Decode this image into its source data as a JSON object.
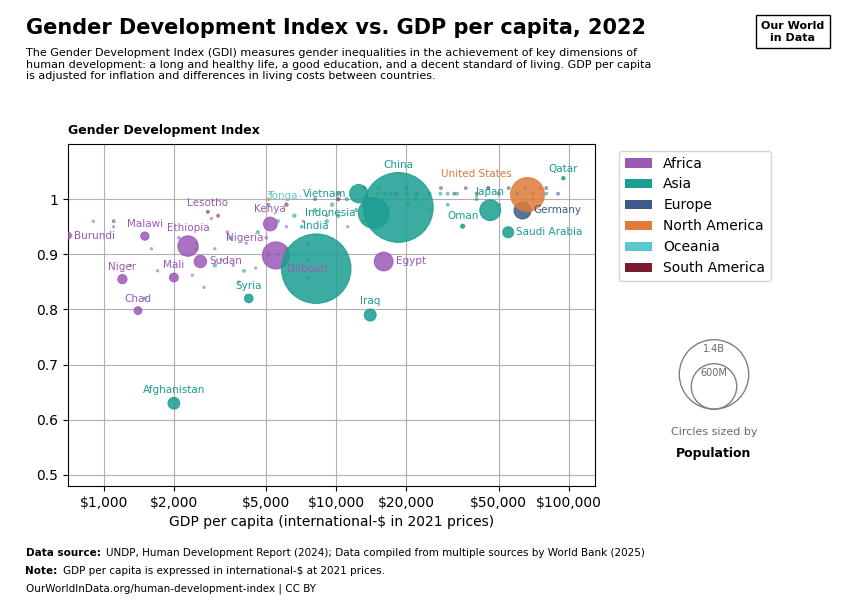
{
  "chart_data": {
    "type": "scatter",
    "title": "Gender Development Index vs. GDP per capita, 2022",
    "subtitle": "The Gender Development Index (GDI) measures gender inequalities in the achievement of key dimensions of\nhuman development: a long and healthy life, a good education, and a decent standard of living. GDP per capita\nis adjusted for inflation and differences in living costs between countries.",
    "xlabel": "GDP per capita (international-$ in 2021 prices)",
    "ylabel": "Gender Development Index",
    "log": "x",
    "xlim": [
      700,
      130000
    ],
    "ylim": [
      0.48,
      1.1
    ],
    "xticks": [
      {
        "value": 1000,
        "label": "$1,000"
      },
      {
        "value": 2000,
        "label": "$2,000"
      },
      {
        "value": 5000,
        "label": "$5,000"
      },
      {
        "value": 10000,
        "label": "$10,000"
      },
      {
        "value": 20000,
        "label": "$20,000"
      },
      {
        "value": 50000,
        "label": "$50,000"
      },
      {
        "value": 100000,
        "label": "$100,000"
      }
    ],
    "yticks": [
      0.5,
      0.6,
      0.7,
      0.8,
      0.9,
      {
        "value": 1.0,
        "label": "1"
      }
    ],
    "grid": true,
    "legend": "upper left",
    "series": [
      {
        "name": "Africa",
        "color": "#9B59B6",
        "x": [
          900,
          1100,
          1300,
          1600,
          1700,
          2100,
          2200,
          2400,
          2500,
          2700,
          2900,
          3000,
          3200,
          3400,
          3600,
          3800,
          4100,
          4500,
          5000,
          5600,
          6100,
          7200,
          7600,
          9100,
          11200,
          13200,
          700,
          1500,
          1200,
          2000,
          1400,
          2300,
          2600,
          2800,
          5200,
          5500,
          7500,
          16000
        ],
        "y": [
          0.96,
          0.95,
          0.88,
          0.91,
          0.87,
          0.93,
          0.9,
          0.862,
          0.92,
          0.84,
          0.965,
          0.91,
          0.89,
          0.94,
          0.88,
          0.85,
          0.92,
          0.875,
          0.93,
          0.9,
          0.95,
          0.96,
          0.89,
          0.97,
          0.95,
          0.96,
          0.934,
          0.933,
          0.855,
          0.858,
          0.798,
          0.915,
          0.887,
          0.977,
          0.955,
          0.898,
          0.858,
          0.887
        ],
        "size": [
          2,
          2,
          2,
          2,
          2,
          3,
          2,
          2,
          2,
          2,
          2,
          2,
          2,
          3,
          2,
          2,
          2,
          2,
          3,
          2,
          2,
          2,
          2,
          2,
          2,
          2,
          12.5,
          19.5,
          24.0,
          22.0,
          17.0,
          120.0,
          44.0,
          2.2,
          54.0,
          213.0,
          1.0,
          102.0
        ],
        "labels": [
          null,
          null,
          null,
          null,
          null,
          null,
          null,
          null,
          null,
          null,
          null,
          null,
          null,
          null,
          null,
          null,
          null,
          null,
          null,
          null,
          null,
          null,
          null,
          null,
          null,
          null,
          "Burundi",
          "Malawi",
          "Niger",
          "Mali",
          "Chad",
          "Ethiopia",
          "Sudan",
          "Lesotho",
          "Kenya",
          "Nigeria",
          "Djibouti",
          "Egypt"
        ]
      },
      {
        "name": "Asia",
        "color": "#1A9E8F",
        "x": [
          1500,
          2500,
          3000,
          3500,
          4000,
          4600,
          5100,
          5600,
          6100,
          6600,
          7100,
          7600,
          8100,
          9100,
          9600,
          10200,
          11100,
          12200,
          13100,
          15200,
          17100,
          20200,
          22100,
          25200,
          28100,
          30200,
          33100,
          40200,
          45100,
          50200,
          60200,
          70100,
          80200,
          2000,
          4200,
          8200,
          12500,
          14500,
          18500,
          35000,
          55000,
          46000,
          95000,
          14000
        ],
        "y": [
          0.82,
          0.91,
          0.88,
          0.93,
          0.87,
          0.94,
          0.9,
          0.96,
          0.91,
          0.97,
          0.95,
          0.92,
          0.98,
          0.96,
          0.99,
          0.97,
          1.0,
          0.98,
          1.0,
          1.02,
          1.01,
          0.99,
          1.0,
          0.98,
          1.01,
          0.99,
          1.01,
          1.0,
          1.02,
          0.99,
          1.01,
          1.0,
          1.01,
          0.63,
          0.82,
          0.874,
          1.01,
          0.975,
          0.985,
          0.951,
          0.94,
          0.98,
          1.038,
          0.79
        ],
        "size": [
          3,
          4,
          4,
          4,
          3,
          4,
          4,
          4,
          4,
          4,
          3,
          4,
          4,
          4,
          4,
          4,
          4,
          4,
          4,
          4,
          4,
          4,
          4,
          3,
          3,
          3,
          3,
          3,
          3,
          3,
          3,
          3,
          3,
          40.0,
          21.0,
          1400.0,
          97.0,
          273.0,
          1412.0,
          4.5,
          35.0,
          125.0,
          2.9,
          41.0
        ],
        "labels": [
          null,
          null,
          null,
          null,
          null,
          null,
          null,
          null,
          null,
          null,
          null,
          null,
          null,
          null,
          null,
          null,
          null,
          null,
          null,
          null,
          null,
          null,
          null,
          null,
          null,
          null,
          null,
          null,
          null,
          null,
          null,
          null,
          null,
          "Afghanistan",
          "Syria",
          "India",
          "Vietnam",
          "Indonesia",
          "China",
          "Oman",
          "Saudi Arabia",
          "Japan",
          "Qatar",
          "Iraq"
        ]
      },
      {
        "name": "Europe",
        "color": "#3D5A8A",
        "x": [
          1100,
          5100,
          8100,
          10200,
          13200,
          16200,
          20100,
          25200,
          28200,
          32200,
          36100,
          40200,
          45200,
          50100,
          55200,
          60200,
          65100,
          70200,
          80200,
          90100,
          63000
        ],
        "y": [
          0.96,
          0.99,
          1.0,
          1.01,
          1.02,
          1.01,
          1.02,
          1.01,
          1.02,
          1.01,
          1.02,
          1.01,
          1.02,
          1.01,
          1.02,
          1.01,
          1.02,
          1.01,
          1.02,
          1.01,
          0.98
        ],
        "size": [
          3,
          3,
          3,
          3,
          3,
          3,
          3,
          3,
          3,
          3,
          3,
          3,
          3,
          3,
          3,
          3,
          3,
          3,
          3,
          3,
          83.0
        ],
        "labels": [
          null,
          null,
          null,
          null,
          null,
          null,
          null,
          null,
          null,
          null,
          null,
          null,
          null,
          null,
          null,
          null,
          null,
          null,
          null,
          null,
          "Germany"
        ]
      },
      {
        "name": "North America",
        "color": "#E07B39",
        "x": [
          5100,
          10200,
          15100,
          20200,
          30100,
          40200,
          50100,
          75200,
          66000
        ],
        "y": [
          1.0,
          1.01,
          1.01,
          1.01,
          1.01,
          1.01,
          1.01,
          1.02,
          1.01
        ],
        "size": [
          3,
          3,
          3,
          3,
          3,
          3,
          3,
          3,
          332.0
        ],
        "labels": [
          null,
          null,
          null,
          null,
          null,
          null,
          null,
          null,
          "United States"
        ]
      },
      {
        "name": "Oceania",
        "color": "#5BC8D1",
        "x": [
          5200,
          10100,
          30200,
          50100,
          7000
        ],
        "y": [
          1.01,
          1.01,
          1.01,
          1.01,
          1.005
        ],
        "size": [
          3,
          3,
          3,
          3,
          0.1
        ],
        "labels": [
          null,
          null,
          null,
          null,
          "Tonga"
        ]
      },
      {
        "name": "South America",
        "color": "#7B1C2E",
        "x": [
          3100,
          6100,
          10200,
          14200,
          18100,
          22200
        ],
        "y": [
          0.97,
          0.99,
          1.0,
          1.0,
          1.01,
          1.01
        ],
        "size": [
          3,
          4,
          4,
          4,
          4,
          4
        ],
        "labels": [
          null,
          null,
          null,
          null,
          null,
          null
        ]
      }
    ],
    "size_legend": {
      "title": "Circles sized by",
      "label": "Population",
      "values": [
        1400,
        600
      ],
      "value_labels": [
        "1.4B",
        "600M"
      ]
    },
    "logo": "Our World\nin Data",
    "footer": [
      {
        "label": "Data source:",
        "text": "UNDP, Human Development Report (2024); Data compiled from multiple sources by World Bank (2025)"
      },
      {
        "label": "Note:",
        "text": "GDP per capita is expressed in international-$ at 2021 prices."
      },
      {
        "text": "OurWorldInData.org/human-development-index | CC BY"
      }
    ]
  }
}
